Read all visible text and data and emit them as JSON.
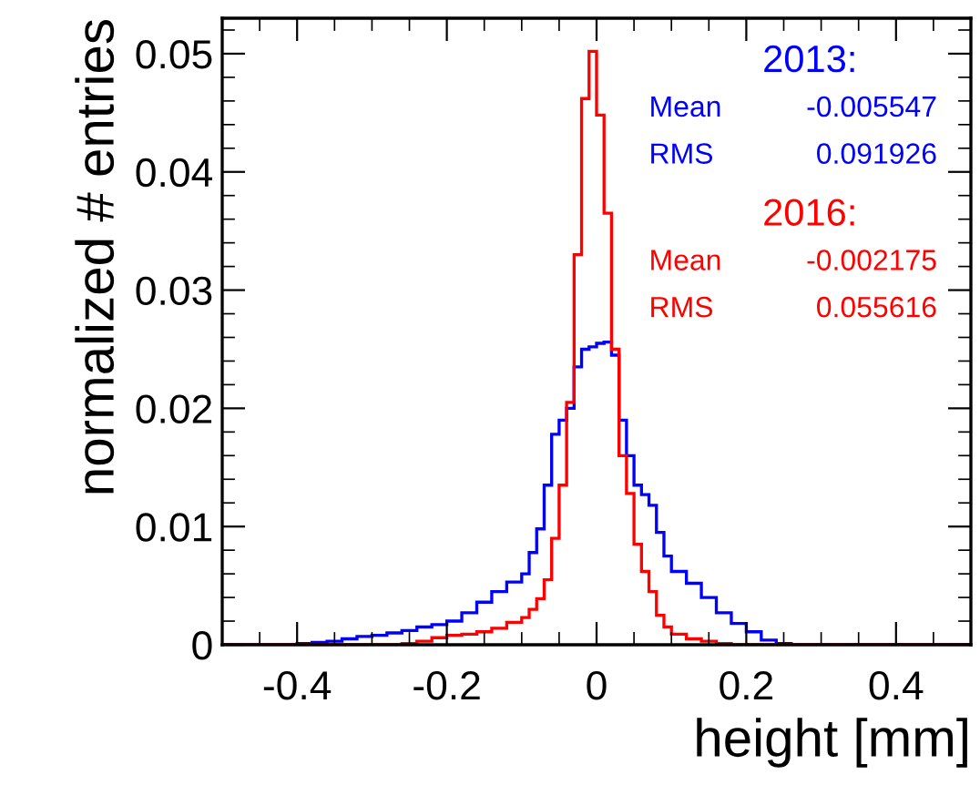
{
  "chart_data": {
    "type": "histogram",
    "xlabel": "height [mm]",
    "ylabel": "normalized # entries",
    "bins": [
      -0.5,
      -0.4,
      -0.38,
      -0.36,
      -0.34,
      -0.32,
      -0.3,
      -0.28,
      -0.26,
      -0.24,
      -0.22,
      -0.2,
      -0.18,
      -0.16,
      -0.14,
      -0.12,
      -0.1,
      -0.09,
      -0.08,
      -0.07,
      -0.06,
      -0.05,
      -0.04,
      -0.03,
      -0.02,
      -0.01,
      0,
      0.01,
      0.02,
      0.03,
      0.04,
      0.05,
      0.06,
      0.07,
      0.08,
      0.09,
      0.1,
      0.12,
      0.14,
      0.16,
      0.18,
      0.2,
      0.22,
      0.24,
      0.26,
      0.5
    ],
    "series": [
      {
        "name": "2013:",
        "color": "#0000ff",
        "values": [
          0,
          0.0001,
          0.0002,
          0.0003,
          0.0005,
          0.0007,
          0.0008,
          0.001,
          0.0012,
          0.0015,
          0.0017,
          0.002,
          0.0027,
          0.0036,
          0.0045,
          0.0053,
          0.006,
          0.0078,
          0.0098,
          0.0135,
          0.0178,
          0.019,
          0.02,
          0.0235,
          0.025,
          0.0252,
          0.0255,
          0.0256,
          0.0245,
          0.019,
          0.016,
          0.0135,
          0.0127,
          0.0118,
          0.0095,
          0.0075,
          0.0062,
          0.0052,
          0.004,
          0.0027,
          0.0018,
          0.0011,
          0.0004,
          0.0001,
          0
        ]
      },
      {
        "name": "2016:",
        "color": "#ff0000",
        "values": [
          0,
          0,
          0,
          0,
          0,
          0,
          0,
          0,
          0.0001,
          0.0003,
          0.0006,
          0.0008,
          0.0009,
          0.0011,
          0.0014,
          0.0019,
          0.0023,
          0.003,
          0.0039,
          0.0055,
          0.009,
          0.0135,
          0.0205,
          0.033,
          0.0462,
          0.0502,
          0.0448,
          0.0365,
          0.025,
          0.016,
          0.0128,
          0.0085,
          0.0062,
          0.0045,
          0.0025,
          0.0015,
          0.0009,
          0.0005,
          0.0003,
          0.0001,
          0,
          0,
          0,
          0,
          0
        ]
      }
    ],
    "annotations": [
      "Mean   -0.005547",
      "RMS     0.091926",
      "Mean   -0.002175",
      "RMS     0.055616"
    ],
    "xlim": [
      -0.5,
      0.5
    ],
    "xticks": [
      -0.4,
      -0.2,
      0,
      0.2,
      0.4
    ],
    "ylim": [
      0,
      0.053
    ],
    "yticks": [
      0,
      0.01,
      0.02,
      0.03,
      0.04,
      0.05
    ],
    "legend": "top right",
    "grid": false
  }
}
